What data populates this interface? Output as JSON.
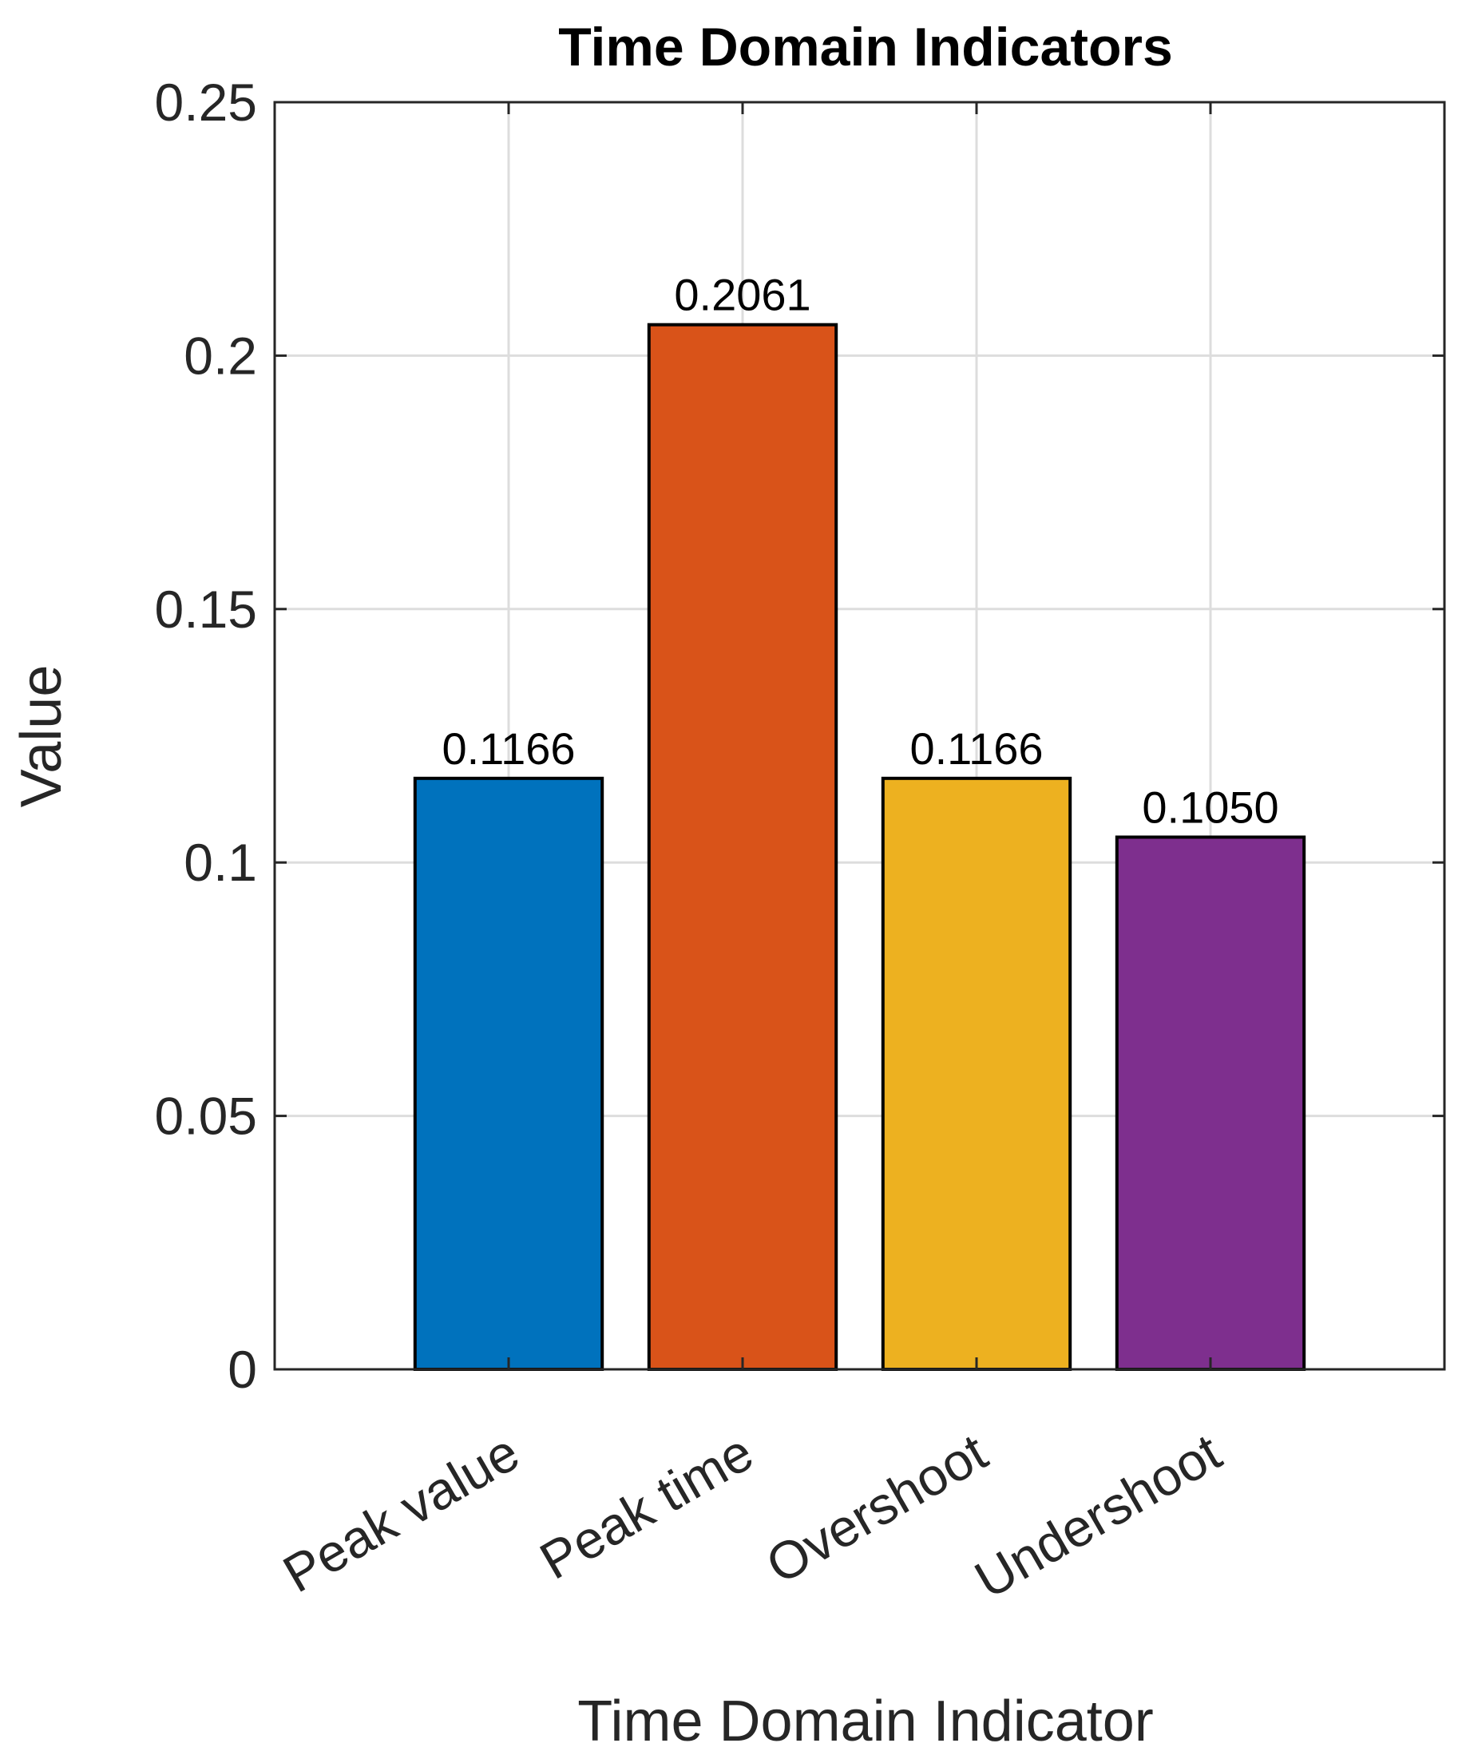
{
  "chart_data": {
    "type": "bar",
    "title": "Time Domain Indicators",
    "xlabel": "Time Domain Indicator",
    "ylabel": "Value",
    "categories": [
      "Peak value",
      "Peak time",
      "Overshoot",
      "Undershoot"
    ],
    "values": [
      0.1166,
      0.2061,
      0.1166,
      0.105
    ],
    "data_labels": [
      "0.1166",
      "0.2061",
      "0.1166",
      "0.1050"
    ],
    "bar_colors": [
      "#0072BD",
      "#D95319",
      "#EDB120",
      "#7E2F8E"
    ],
    "ylim": [
      0,
      0.25
    ],
    "yticks": [
      0,
      0.05,
      0.1,
      0.15,
      0.2,
      0.25
    ],
    "ytick_labels": [
      "0",
      "0.05",
      "0.1",
      "0.15",
      "0.2",
      "0.25"
    ],
    "xlim": [
      0,
      5
    ],
    "grid": true
  }
}
